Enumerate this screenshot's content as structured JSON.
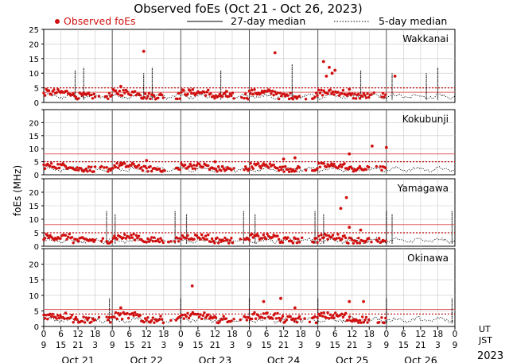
{
  "title": "Observed foEs (Oct 21 - Oct 26, 2023)",
  "legend": {
    "observed": "Observed foEs",
    "median27": "27-day median",
    "median5": "5-day median"
  },
  "ylabel": "foEs (MHz)",
  "x_rows": {
    "ut": "UT",
    "jst": "JST",
    "year": "2023"
  },
  "colors": {
    "observed": "#d01010",
    "median27_line": "#e06060",
    "grid": "#c8c8c8"
  },
  "chart_data": {
    "type": "scatter",
    "x_unit": "hours since Oct 21 00 JST",
    "xlim": [
      0,
      144
    ],
    "ylim": [
      0,
      25
    ],
    "yticks": [
      0,
      5,
      10,
      15,
      20,
      25
    ],
    "jst_ticks": [
      "9",
      "15",
      "21",
      "3",
      "9",
      "15",
      "21",
      "3",
      "9",
      "15",
      "21",
      "3",
      "9",
      "15",
      "21",
      "3",
      "9",
      "15",
      "21",
      "3",
      "9",
      "15",
      "21",
      "3",
      "9"
    ],
    "ut_ticks": [
      "0",
      "6",
      "12",
      "18",
      "0",
      "6",
      "12",
      "18",
      "0",
      "6",
      "12",
      "18",
      "0",
      "6",
      "12",
      "18",
      "0",
      "6",
      "12",
      "18",
      "0",
      "6",
      "12",
      "18",
      "0"
    ],
    "days": [
      "Oct 21",
      "Oct 22",
      "Oct 23",
      "Oct 24",
      "Oct 25",
      "Oct 26"
    ],
    "stations": [
      {
        "name": "Wakkanai",
        "median27": 3.5,
        "median5": 5.0,
        "spikes": [
          [
            11,
            11
          ],
          [
            14,
            12
          ],
          [
            35,
            10
          ],
          [
            38,
            12
          ],
          [
            62,
            11
          ],
          [
            87,
            13
          ],
          [
            111,
            11
          ],
          [
            122,
            10
          ],
          [
            134,
            10
          ],
          [
            138,
            12
          ]
        ],
        "outliers": [
          [
            27,
            5.5
          ],
          [
            35,
            17.5
          ],
          [
            64,
            3.8
          ],
          [
            81,
            17
          ],
          [
            98,
            14
          ],
          [
            99,
            9
          ],
          [
            100,
            12
          ],
          [
            101,
            10
          ],
          [
            102,
            11
          ],
          [
            107,
            4.5
          ],
          [
            123,
            9
          ]
        ]
      },
      {
        "name": "Kokubunji",
        "median27": 8.0,
        "median5": 5.0,
        "spikes": [],
        "outliers": [
          [
            27,
            4.5
          ],
          [
            36,
            5.5
          ],
          [
            60,
            5
          ],
          [
            84,
            6
          ],
          [
            88,
            6.5
          ],
          [
            107,
            8
          ],
          [
            115,
            11
          ],
          [
            120,
            10.5
          ]
        ]
      },
      {
        "name": "Yamagawa",
        "median27": 8.0,
        "median5": 5.0,
        "spikes": [
          [
            22,
            13
          ],
          [
            25,
            12
          ],
          [
            46,
            13
          ],
          [
            50,
            12
          ],
          [
            70,
            13
          ],
          [
            74,
            12
          ],
          [
            95,
            13
          ],
          [
            98,
            12
          ],
          [
            120,
            13
          ],
          [
            122,
            12
          ],
          [
            143,
            13
          ]
        ],
        "outliers": [
          [
            106,
            18
          ],
          [
            104,
            14
          ],
          [
            111,
            6
          ],
          [
            107,
            7
          ]
        ]
      },
      {
        "name": "Okinawa",
        "median27": 5.5,
        "median5": 4.0,
        "spikes": [
          [
            23,
            9
          ],
          [
            48,
            9
          ],
          [
            72,
            9
          ],
          [
            96,
            9
          ],
          [
            120,
            9
          ],
          [
            143,
            9
          ]
        ],
        "outliers": [
          [
            27,
            6
          ],
          [
            52,
            13
          ],
          [
            77,
            8
          ],
          [
            83,
            9
          ],
          [
            88,
            6
          ],
          [
            107,
            8
          ],
          [
            112,
            8
          ]
        ]
      }
    ]
  }
}
